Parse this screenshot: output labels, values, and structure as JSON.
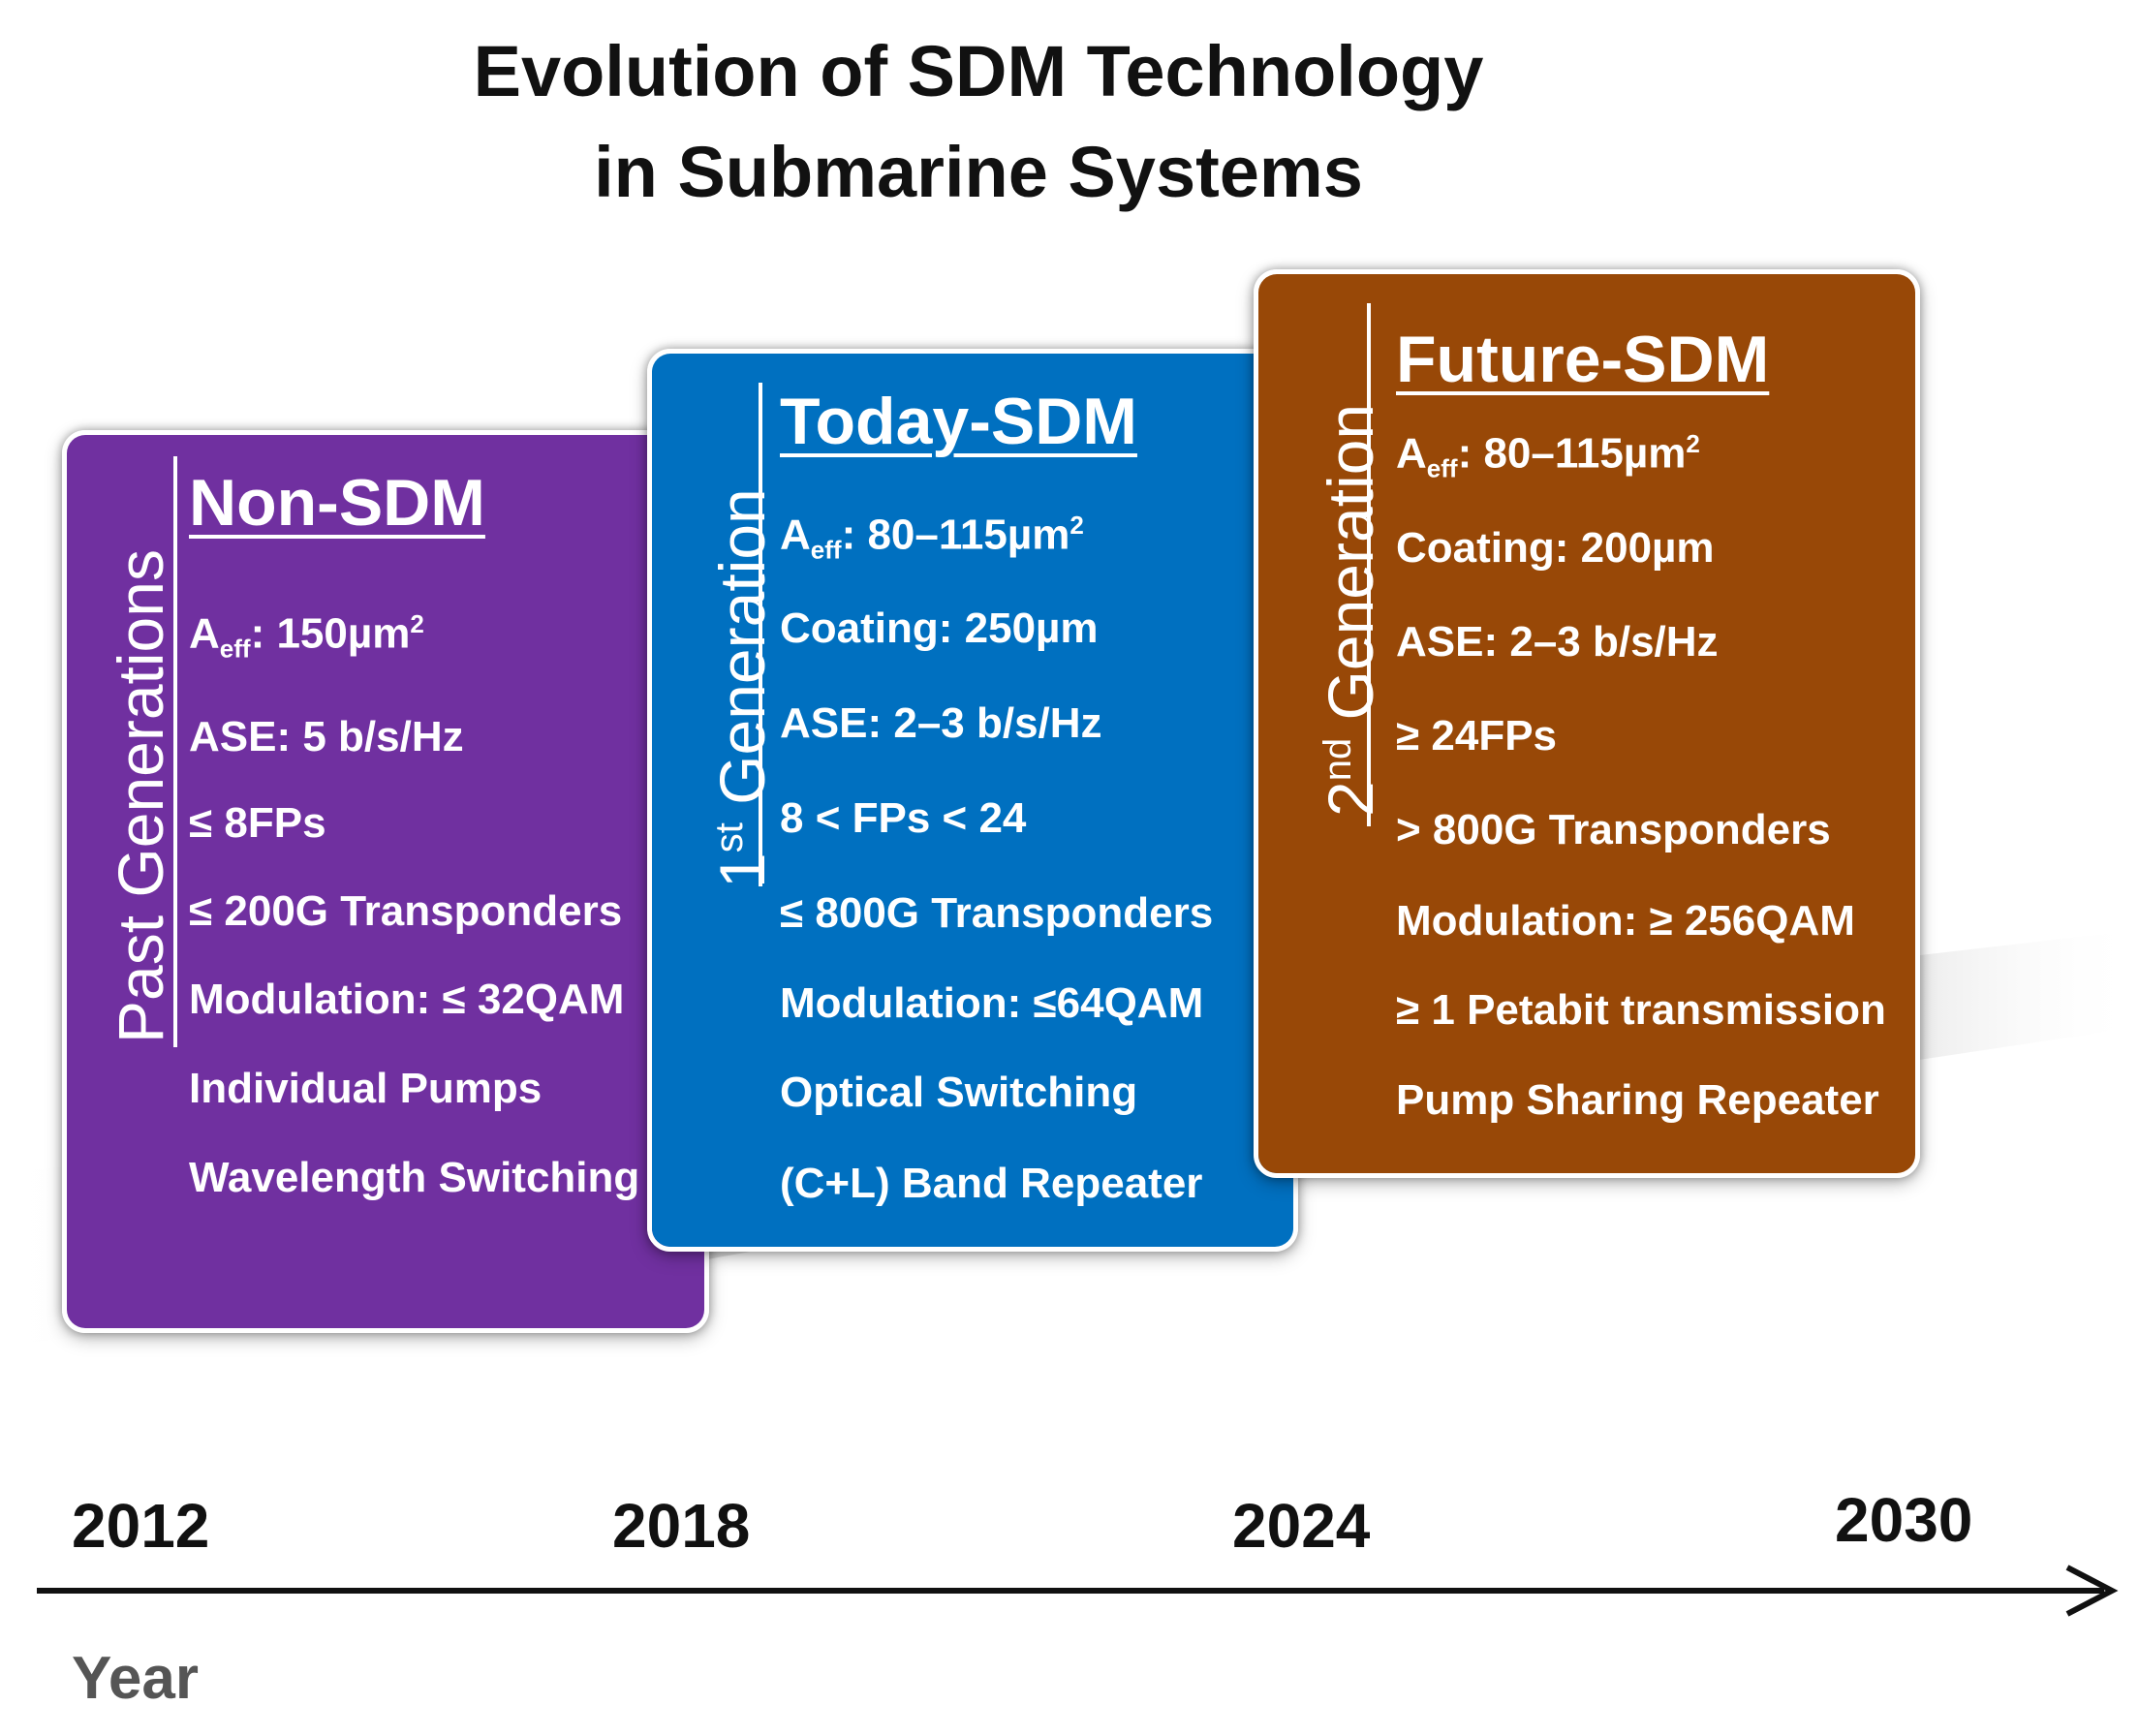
{
  "title": {
    "line1": "Evolution of SDM Technology",
    "line2": "in Submarine Systems"
  },
  "colors": {
    "past": "#7030A0",
    "today": "#0070C0",
    "future": "#984807",
    "text": "#111111",
    "axis_label": "#555555"
  },
  "cards": {
    "past": {
      "side_label": "Past Generations",
      "heading": "Non-SDM",
      "aeff_prefix": "A",
      "aeff_sub": "eff",
      "aeff_value": ": 150µm",
      "aeff_sup": "2",
      "items": [
        "ASE: 5 b/s/Hz",
        "≤ 8FPs",
        "≤ 200G Transponders",
        "Modulation: ≤ 32QAM",
        "Individual Pumps",
        "Wavelength Switching"
      ]
    },
    "today": {
      "side_label_num": "1",
      "side_label_sup": "st",
      "side_label_word": "Generation",
      "heading": "Today-SDM",
      "aeff_prefix": "A",
      "aeff_sub": "eff",
      "aeff_value": ": 80–115µm",
      "aeff_sup": "2",
      "items": [
        "Coating: 250µm",
        "ASE: 2–3 b/s/Hz",
        "8 < FPs < 24",
        "≤ 800G Transponders",
        "Modulation: ≤64QAM",
        "Optical Switching",
        "(C+L) Band  Repeater"
      ]
    },
    "future": {
      "side_label_num": "2",
      "side_label_sup": "nd",
      "side_label_word": "Generation",
      "heading": "Future-SDM",
      "aeff_prefix": "A",
      "aeff_sub": "eff",
      "aeff_value": ": 80–115µm",
      "aeff_sup": "2",
      "items": [
        "Coating: 200µm",
        "ASE: 2–3 b/s/Hz",
        "≥ 24FPs",
        "> 800G Transponders",
        "Modulation: ≥ 256QAM",
        "≥ 1 Petabit transmission",
        "Pump Sharing Repeater"
      ]
    }
  },
  "timeline": {
    "years": [
      "2012",
      "2018",
      "2024",
      "2030"
    ],
    "axis_label": "Year"
  }
}
